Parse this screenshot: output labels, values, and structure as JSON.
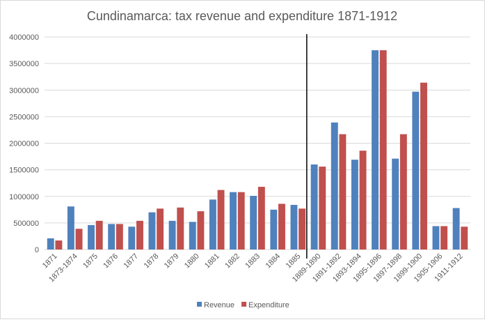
{
  "chart_data": {
    "type": "bar",
    "title": "Cundinamarca: tax revenue and expenditure 1871-1912",
    "xlabel": "",
    "ylabel": "",
    "ylim": [
      0,
      4000000
    ],
    "yticks": [
      0,
      500000,
      1000000,
      1500000,
      2000000,
      2500000,
      3000000,
      3500000,
      4000000
    ],
    "grid": true,
    "legend_position": "bottom",
    "divider_after_category": "1885",
    "categories": [
      "1871",
      "1873-1874",
      "1875",
      "1876",
      "1877",
      "1878",
      "1879",
      "1880",
      "1881",
      "1882",
      "1883",
      "1884",
      "1885",
      "1889-1890",
      "1891-1892",
      "1893-1894",
      "1895-1896",
      "1897-1898",
      "1899-1900",
      "1905-1906",
      "1911-1912"
    ],
    "series": [
      {
        "name": "Revenue",
        "color": "#4f81bd",
        "values": [
          210000,
          810000,
          460000,
          480000,
          430000,
          700000,
          540000,
          520000,
          940000,
          1080000,
          1010000,
          750000,
          840000,
          1600000,
          2390000,
          1690000,
          3750000,
          1710000,
          2970000,
          440000,
          780000
        ]
      },
      {
        "name": "Expenditure",
        "color": "#c0504d",
        "values": [
          170000,
          390000,
          540000,
          480000,
          540000,
          770000,
          790000,
          720000,
          1120000,
          1080000,
          1180000,
          860000,
          770000,
          1560000,
          2170000,
          1860000,
          3750000,
          2170000,
          3140000,
          440000,
          430000
        ]
      }
    ]
  }
}
